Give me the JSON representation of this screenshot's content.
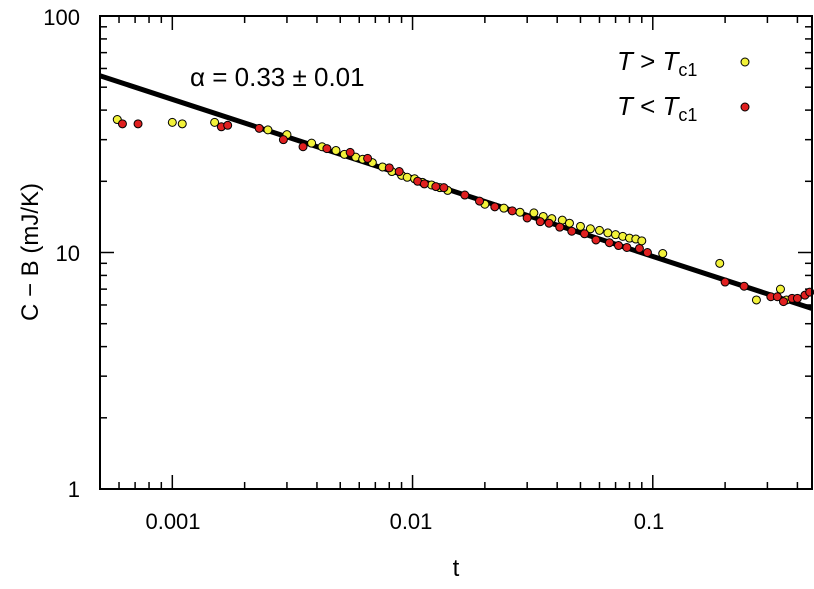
{
  "chart_data": {
    "type": "scatter",
    "xscale": "log",
    "yscale": "log",
    "xlim": [
      0.0005,
      0.46
    ],
    "ylim": [
      1,
      100
    ],
    "xlabel": "t",
    "ylabel": "C − B  (mJ/K)",
    "x_tick_labels": [
      "0.001",
      "0.01",
      "0.1"
    ],
    "y_tick_labels": [
      "1",
      "10",
      "100"
    ],
    "annotation": "α = 0.33 ± 0.01",
    "legend_position": "top-right",
    "fit_line": {
      "x": [
        0.0005,
        0.46
      ],
      "y": [
        55.9,
        5.8
      ],
      "color": "#000000"
    },
    "series": [
      {
        "name": "T > Tc1",
        "color": "#f2f23a",
        "points": [
          [
            0.00059,
            36.5
          ],
          [
            0.001,
            35.5
          ],
          [
            0.0011,
            35.0
          ],
          [
            0.0015,
            35.5
          ],
          [
            0.0025,
            33.0
          ],
          [
            0.003,
            31.5
          ],
          [
            0.0038,
            29.0
          ],
          [
            0.0042,
            28.0
          ],
          [
            0.0048,
            27.0
          ],
          [
            0.0052,
            26.0
          ],
          [
            0.0058,
            25.3
          ],
          [
            0.0062,
            24.8
          ],
          [
            0.0068,
            24.0
          ],
          [
            0.0075,
            23.0
          ],
          [
            0.0082,
            22.0
          ],
          [
            0.009,
            21.2
          ],
          [
            0.0095,
            20.8
          ],
          [
            0.0102,
            20.5
          ],
          [
            0.011,
            19.8
          ],
          [
            0.012,
            19.3
          ],
          [
            0.013,
            18.8
          ],
          [
            0.014,
            18.3
          ],
          [
            0.02,
            16.0
          ],
          [
            0.024,
            15.4
          ],
          [
            0.028,
            14.8
          ],
          [
            0.032,
            14.7
          ],
          [
            0.035,
            14.2
          ],
          [
            0.038,
            13.9
          ],
          [
            0.042,
            13.7
          ],
          [
            0.045,
            13.3
          ],
          [
            0.05,
            12.9
          ],
          [
            0.055,
            12.6
          ],
          [
            0.06,
            12.4
          ],
          [
            0.065,
            12.1
          ],
          [
            0.07,
            11.9
          ],
          [
            0.075,
            11.7
          ],
          [
            0.08,
            11.5
          ],
          [
            0.085,
            11.4
          ],
          [
            0.09,
            11.2
          ],
          [
            0.11,
            9.9
          ],
          [
            0.19,
            9.0
          ],
          [
            0.27,
            6.3
          ],
          [
            0.34,
            7.0
          ],
          [
            0.36,
            6.3
          ]
        ]
      },
      {
        "name": "T < Tc1",
        "color": "#e02020",
        "points": [
          [
            0.00062,
            35.0
          ],
          [
            0.00072,
            35.0
          ],
          [
            0.0016,
            34.0
          ],
          [
            0.0017,
            34.5
          ],
          [
            0.0023,
            33.5
          ],
          [
            0.0029,
            30.0
          ],
          [
            0.0035,
            28.0
          ],
          [
            0.0044,
            27.5
          ],
          [
            0.0055,
            26.5
          ],
          [
            0.0065,
            25.0
          ],
          [
            0.008,
            22.8
          ],
          [
            0.0088,
            22.0
          ],
          [
            0.0105,
            20.0
          ],
          [
            0.0112,
            19.5
          ],
          [
            0.0125,
            19.0
          ],
          [
            0.0135,
            18.8
          ],
          [
            0.0165,
            17.5
          ],
          [
            0.019,
            16.5
          ],
          [
            0.022,
            15.6
          ],
          [
            0.026,
            15.0
          ],
          [
            0.03,
            14.0
          ],
          [
            0.034,
            13.5
          ],
          [
            0.037,
            13.3
          ],
          [
            0.041,
            12.8
          ],
          [
            0.046,
            12.3
          ],
          [
            0.052,
            12.0
          ],
          [
            0.058,
            11.3
          ],
          [
            0.066,
            11.0
          ],
          [
            0.072,
            10.7
          ],
          [
            0.078,
            10.5
          ],
          [
            0.088,
            10.4
          ],
          [
            0.095,
            10.0
          ],
          [
            0.2,
            7.5
          ],
          [
            0.24,
            7.2
          ],
          [
            0.31,
            6.5
          ],
          [
            0.33,
            6.5
          ],
          [
            0.35,
            6.2
          ],
          [
            0.38,
            6.4
          ],
          [
            0.4,
            6.4
          ],
          [
            0.43,
            6.6
          ],
          [
            0.45,
            6.8
          ]
        ]
      }
    ]
  }
}
